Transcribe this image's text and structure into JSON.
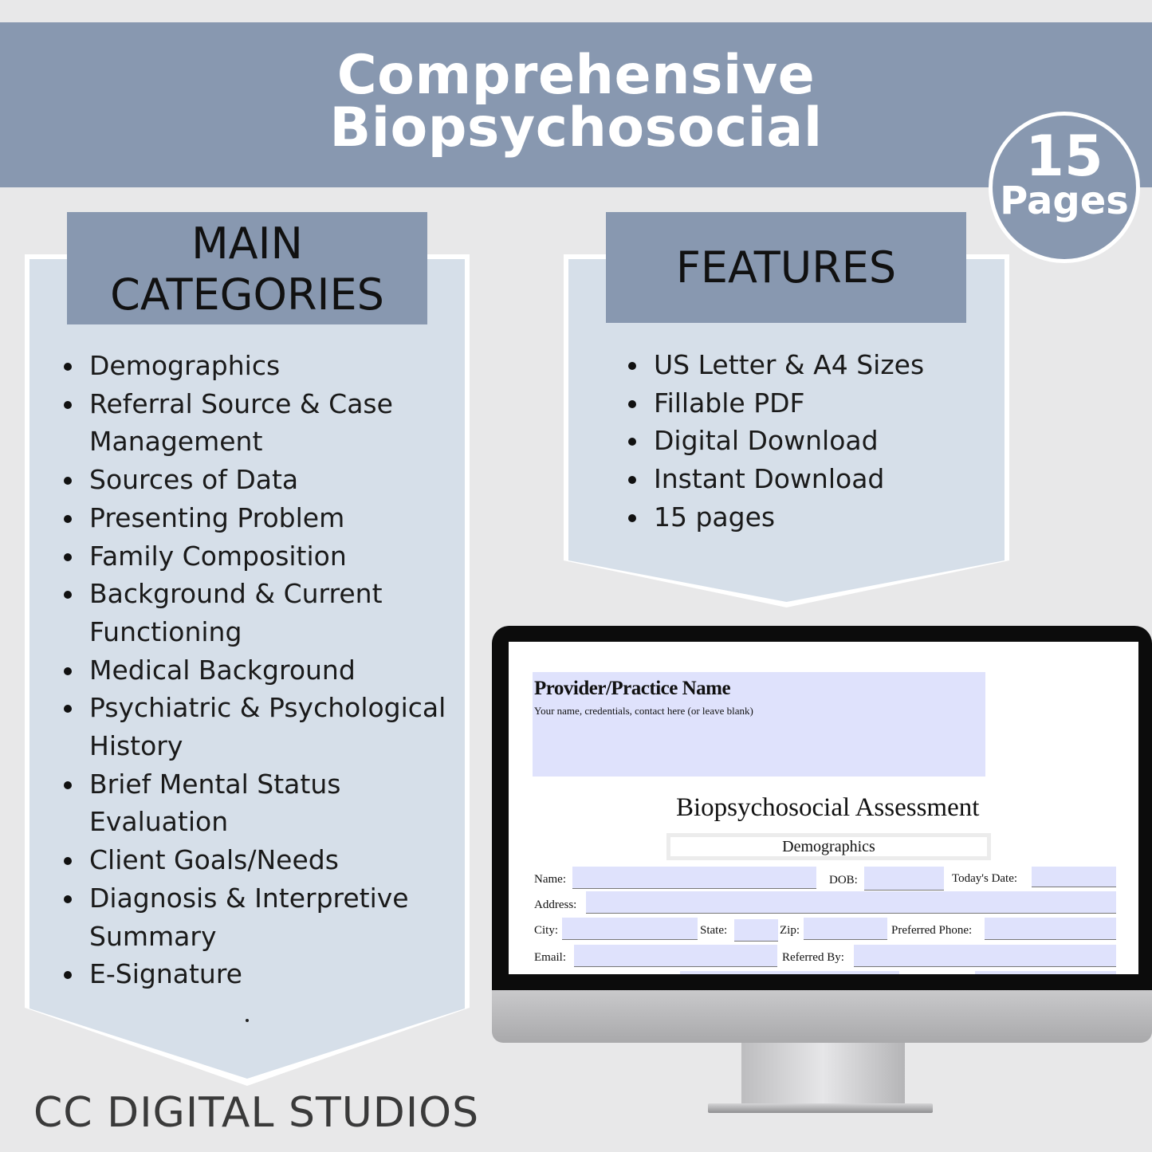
{
  "header": {
    "title_line1": "Comprehensive",
    "title_line2": "Biopsychosocial"
  },
  "badge": {
    "number": "15",
    "label": "Pages"
  },
  "categories": {
    "heading_line1": "MAIN",
    "heading_line2": "CATEGORIES",
    "items": [
      "Demographics",
      "Referral Source & Case Management",
      "Sources of Data",
      "Presenting Problem",
      "Family Composition",
      "Background & Current Functioning",
      "Medical Background",
      "Psychiatric & Psychological History",
      "Brief Mental Status Evaluation",
      "Client Goals/Needs",
      "Diagnosis & Interpretive Summary",
      "E-Signature"
    ]
  },
  "features": {
    "heading": "FEATURES",
    "items": [
      "US Letter & A4 Sizes",
      "Fillable PDF",
      "Digital Download",
      "Instant Download",
      "15 pages"
    ]
  },
  "brand": "CC DIGITAL STUDIOS",
  "colors": {
    "banner": "#8898b0",
    "panel": "#d6dfe9",
    "background": "#e8e8e9",
    "field": "#dfe2fc"
  },
  "form": {
    "provider_title": "Provider/Practice Name",
    "provider_sub": "Your name, credentials, contact here (or leave blank)",
    "doc_title": "Biopsychosocial Assessment",
    "section": "Demographics",
    "labels": {
      "name": "Name:",
      "dob": "DOB:",
      "today": "Today's Date:",
      "address": "Address:",
      "city": "City:",
      "state": "State:",
      "zip": "Zip:",
      "phone": "Preferred Phone:",
      "email": "Email:",
      "referred": "Referred By:"
    }
  }
}
